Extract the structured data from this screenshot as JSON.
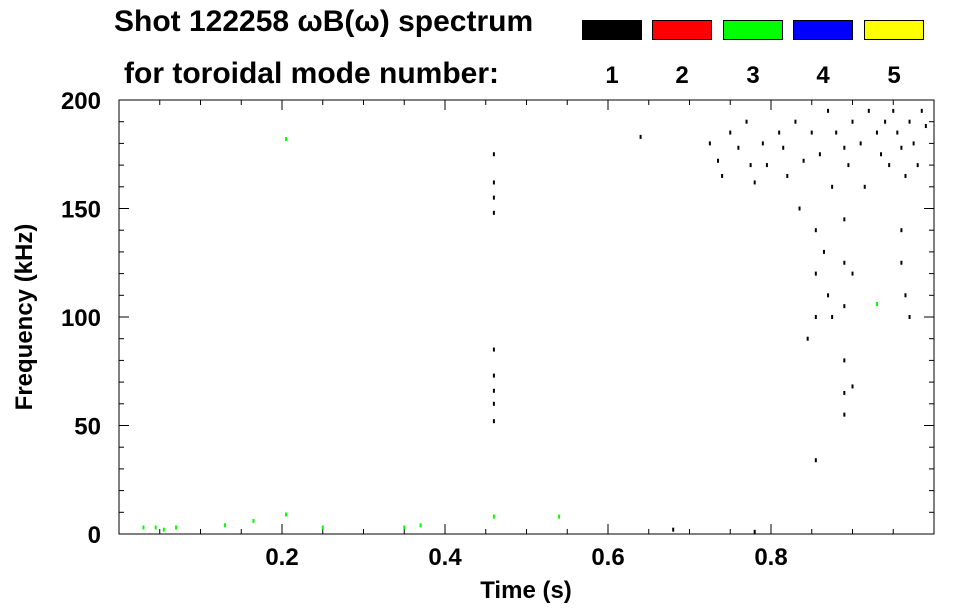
{
  "header": {
    "title_line1": "Shot 122258 ωB(ω) spectrum",
    "title_line2": "for toroidal mode number:"
  },
  "legend": [
    {
      "label": "1",
      "color": "#000000"
    },
    {
      "label": "2",
      "color": "#ff0000"
    },
    {
      "label": "3",
      "color": "#00ff00"
    },
    {
      "label": "4",
      "color": "#0000ff"
    },
    {
      "label": "5",
      "color": "#ffff00"
    }
  ],
  "chart_data": {
    "type": "scatter",
    "xlabel": "Time (s)",
    "ylabel": "Frequency (kHz)",
    "xlim": [
      0.0,
      1.0
    ],
    "ylim": [
      0,
      200
    ],
    "xticks": [
      0.2,
      0.4,
      0.6,
      0.8
    ],
    "yticks": [
      0,
      50,
      100,
      150,
      200
    ],
    "grid": false,
    "series": [
      {
        "name": "1",
        "color": "#000000",
        "points": [
          [
            0.46,
            175
          ],
          [
            0.46,
            162
          ],
          [
            0.46,
            155
          ],
          [
            0.46,
            148
          ],
          [
            0.46,
            85
          ],
          [
            0.46,
            73
          ],
          [
            0.46,
            66
          ],
          [
            0.46,
            60
          ],
          [
            0.46,
            52
          ],
          [
            0.64,
            183
          ],
          [
            0.68,
            2
          ],
          [
            0.78,
            1
          ],
          [
            0.855,
            34
          ],
          [
            0.725,
            180
          ],
          [
            0.735,
            172
          ],
          [
            0.74,
            165
          ],
          [
            0.75,
            185
          ],
          [
            0.76,
            178
          ],
          [
            0.77,
            190
          ],
          [
            0.775,
            170
          ],
          [
            0.78,
            162
          ],
          [
            0.79,
            180
          ],
          [
            0.795,
            170
          ],
          [
            0.81,
            185
          ],
          [
            0.815,
            178
          ],
          [
            0.82,
            165
          ],
          [
            0.83,
            190
          ],
          [
            0.835,
            150
          ],
          [
            0.84,
            172
          ],
          [
            0.85,
            185
          ],
          [
            0.86,
            175
          ],
          [
            0.87,
            195
          ],
          [
            0.875,
            160
          ],
          [
            0.88,
            185
          ],
          [
            0.89,
            178
          ],
          [
            0.895,
            170
          ],
          [
            0.9,
            190
          ],
          [
            0.91,
            180
          ],
          [
            0.915,
            160
          ],
          [
            0.92,
            195
          ],
          [
            0.93,
            185
          ],
          [
            0.935,
            175
          ],
          [
            0.94,
            190
          ],
          [
            0.945,
            170
          ],
          [
            0.95,
            195
          ],
          [
            0.955,
            185
          ],
          [
            0.96,
            178
          ],
          [
            0.965,
            165
          ],
          [
            0.97,
            190
          ],
          [
            0.975,
            180
          ],
          [
            0.98,
            170
          ],
          [
            0.985,
            195
          ],
          [
            0.99,
            188
          ],
          [
            0.855,
            140
          ],
          [
            0.855,
            120
          ],
          [
            0.855,
            100
          ],
          [
            0.865,
            130
          ],
          [
            0.87,
            110
          ],
          [
            0.89,
            145
          ],
          [
            0.89,
            125
          ],
          [
            0.89,
            105
          ],
          [
            0.89,
            80
          ],
          [
            0.89,
            65
          ],
          [
            0.89,
            55
          ],
          [
            0.9,
            120
          ],
          [
            0.96,
            140
          ],
          [
            0.96,
            125
          ],
          [
            0.965,
            110
          ],
          [
            0.97,
            100
          ],
          [
            0.875,
            100
          ],
          [
            0.845,
            90
          ],
          [
            0.9,
            68
          ]
        ]
      },
      {
        "name": "3",
        "color": "#00ff00",
        "points": [
          [
            0.205,
            182
          ],
          [
            0.03,
            3
          ],
          [
            0.045,
            3
          ],
          [
            0.055,
            2
          ],
          [
            0.07,
            3
          ],
          [
            0.13,
            4
          ],
          [
            0.165,
            6
          ],
          [
            0.205,
            9
          ],
          [
            0.25,
            3
          ],
          [
            0.35,
            3
          ],
          [
            0.37,
            4
          ],
          [
            0.46,
            8
          ],
          [
            0.54,
            8
          ],
          [
            0.93,
            106
          ]
        ]
      }
    ]
  }
}
